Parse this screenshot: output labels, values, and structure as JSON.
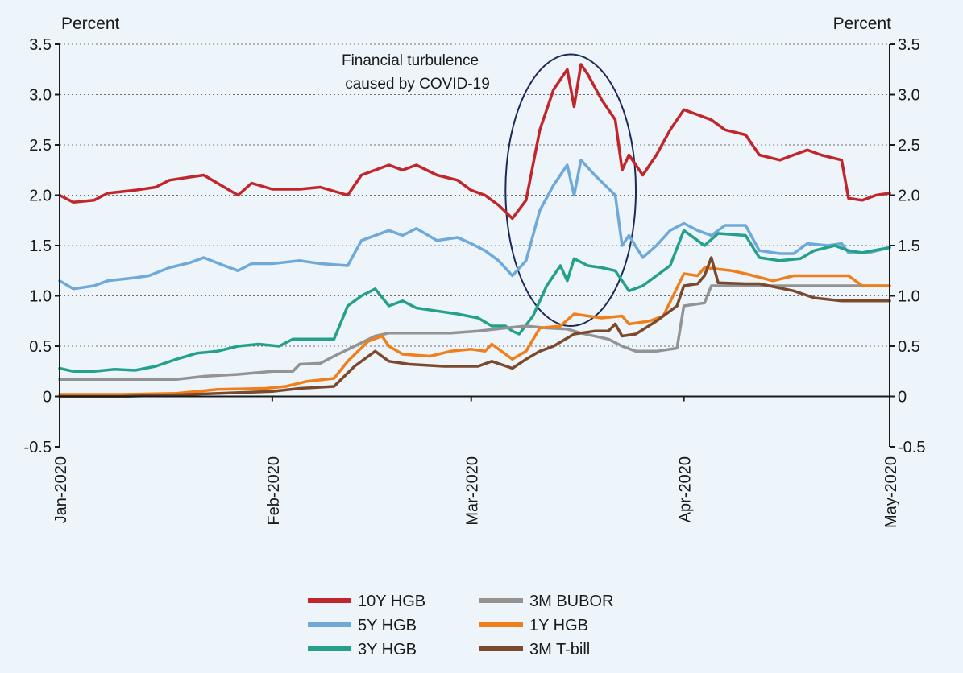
{
  "chart_data": {
    "type": "line",
    "ylabel_left": "Percent",
    "ylabel_right": "Percent",
    "ylim": [
      -0.5,
      3.5
    ],
    "yticks": [
      "3.5",
      "3.0",
      "2.5",
      "2.0",
      "1.5",
      "1.0",
      "0.5",
      "0",
      "-0.5"
    ],
    "ytick_values": [
      3.5,
      3.0,
      2.5,
      2.0,
      1.5,
      1.0,
      0.5,
      0,
      -0.5
    ],
    "xlim": [
      "2020-01-01",
      "2020-05-01"
    ],
    "xticks": [
      "Jan-2020",
      "Feb-2020",
      "Mar-2020",
      "Apr-2020",
      "May-2020"
    ],
    "xtick_dates": [
      "2020-01-01",
      "2020-02-01",
      "2020-03-01",
      "2020-04-01",
      "2020-05-01"
    ],
    "grid": true,
    "legend_position": "bottom",
    "annotation": {
      "lines": [
        "Financial turbulence",
        "caused by COVID-19"
      ],
      "shape": "ellipse",
      "date_from": "2020-03-06",
      "date_to": "2020-03-25",
      "y_from": 0.7,
      "y_to": 3.4
    },
    "series": [
      {
        "name": "10Y HGB",
        "color": "#c0262b",
        "points": [
          [
            "2020-01-01",
            2.0
          ],
          [
            "2020-01-03",
            1.93
          ],
          [
            "2020-01-06",
            1.95
          ],
          [
            "2020-01-08",
            2.02
          ],
          [
            "2020-01-12",
            2.05
          ],
          [
            "2020-01-15",
            2.08
          ],
          [
            "2020-01-17",
            2.15
          ],
          [
            "2020-01-20",
            2.18
          ],
          [
            "2020-01-22",
            2.2
          ],
          [
            "2020-01-25",
            2.08
          ],
          [
            "2020-01-27",
            2.0
          ],
          [
            "2020-01-29",
            2.12
          ],
          [
            "2020-02-01",
            2.06
          ],
          [
            "2020-02-05",
            2.06
          ],
          [
            "2020-02-08",
            2.08
          ],
          [
            "2020-02-12",
            2.0
          ],
          [
            "2020-02-14",
            2.2
          ],
          [
            "2020-02-18",
            2.3
          ],
          [
            "2020-02-20",
            2.25
          ],
          [
            "2020-02-22",
            2.3
          ],
          [
            "2020-02-25",
            2.2
          ],
          [
            "2020-02-28",
            2.15
          ],
          [
            "2020-03-01",
            2.05
          ],
          [
            "2020-03-03",
            2.0
          ],
          [
            "2020-03-05",
            1.9
          ],
          [
            "2020-03-07",
            1.77
          ],
          [
            "2020-03-09",
            1.95
          ],
          [
            "2020-03-11",
            2.65
          ],
          [
            "2020-03-13",
            3.05
          ],
          [
            "2020-03-15",
            3.25
          ],
          [
            "2020-03-16",
            2.88
          ],
          [
            "2020-03-17",
            3.3
          ],
          [
            "2020-03-18",
            3.2
          ],
          [
            "2020-03-20",
            2.95
          ],
          [
            "2020-03-22",
            2.75
          ],
          [
            "2020-03-23",
            2.25
          ],
          [
            "2020-03-24",
            2.4
          ],
          [
            "2020-03-26",
            2.2
          ],
          [
            "2020-03-28",
            2.4
          ],
          [
            "2020-03-30",
            2.65
          ],
          [
            "2020-04-01",
            2.85
          ],
          [
            "2020-04-03",
            2.8
          ],
          [
            "2020-04-05",
            2.75
          ],
          [
            "2020-04-07",
            2.65
          ],
          [
            "2020-04-10",
            2.6
          ],
          [
            "2020-04-12",
            2.4
          ],
          [
            "2020-04-15",
            2.35
          ],
          [
            "2020-04-17",
            2.4
          ],
          [
            "2020-04-19",
            2.45
          ],
          [
            "2020-04-21",
            2.4
          ],
          [
            "2020-04-24",
            2.35
          ],
          [
            "2020-04-25",
            1.97
          ],
          [
            "2020-04-27",
            1.95
          ],
          [
            "2020-04-29",
            2.0
          ],
          [
            "2020-05-01",
            2.02
          ]
        ]
      },
      {
        "name": "5Y HGB",
        "color": "#6ea9da",
        "points": [
          [
            "2020-01-01",
            1.15
          ],
          [
            "2020-01-03",
            1.07
          ],
          [
            "2020-01-06",
            1.1
          ],
          [
            "2020-01-08",
            1.15
          ],
          [
            "2020-01-12",
            1.18
          ],
          [
            "2020-01-14",
            1.2
          ],
          [
            "2020-01-17",
            1.28
          ],
          [
            "2020-01-20",
            1.33
          ],
          [
            "2020-01-22",
            1.38
          ],
          [
            "2020-01-25",
            1.3
          ],
          [
            "2020-01-27",
            1.25
          ],
          [
            "2020-01-29",
            1.32
          ],
          [
            "2020-02-01",
            1.32
          ],
          [
            "2020-02-05",
            1.35
          ],
          [
            "2020-02-08",
            1.32
          ],
          [
            "2020-02-12",
            1.3
          ],
          [
            "2020-02-14",
            1.55
          ],
          [
            "2020-02-18",
            1.65
          ],
          [
            "2020-02-20",
            1.6
          ],
          [
            "2020-02-22",
            1.67
          ],
          [
            "2020-02-25",
            1.55
          ],
          [
            "2020-02-28",
            1.58
          ],
          [
            "2020-03-01",
            1.52
          ],
          [
            "2020-03-03",
            1.45
          ],
          [
            "2020-03-05",
            1.35
          ],
          [
            "2020-03-07",
            1.2
          ],
          [
            "2020-03-09",
            1.35
          ],
          [
            "2020-03-11",
            1.85
          ],
          [
            "2020-03-13",
            2.1
          ],
          [
            "2020-03-15",
            2.3
          ],
          [
            "2020-03-16",
            2.0
          ],
          [
            "2020-03-17",
            2.35
          ],
          [
            "2020-03-19",
            2.2
          ],
          [
            "2020-03-22",
            2.0
          ],
          [
            "2020-03-23",
            1.5
          ],
          [
            "2020-03-24",
            1.6
          ],
          [
            "2020-03-26",
            1.38
          ],
          [
            "2020-03-28",
            1.5
          ],
          [
            "2020-03-30",
            1.65
          ],
          [
            "2020-04-01",
            1.72
          ],
          [
            "2020-04-03",
            1.65
          ],
          [
            "2020-04-05",
            1.6
          ],
          [
            "2020-04-07",
            1.7
          ],
          [
            "2020-04-10",
            1.7
          ],
          [
            "2020-04-12",
            1.45
          ],
          [
            "2020-04-15",
            1.42
          ],
          [
            "2020-04-17",
            1.42
          ],
          [
            "2020-04-19",
            1.52
          ],
          [
            "2020-04-22",
            1.5
          ],
          [
            "2020-04-24",
            1.52
          ],
          [
            "2020-04-25",
            1.43
          ],
          [
            "2020-04-28",
            1.43
          ],
          [
            "2020-05-01",
            1.48
          ]
        ]
      },
      {
        "name": "3Y HGB",
        "color": "#24a08b",
        "points": [
          [
            "2020-01-01",
            0.28
          ],
          [
            "2020-01-03",
            0.25
          ],
          [
            "2020-01-06",
            0.25
          ],
          [
            "2020-01-09",
            0.27
          ],
          [
            "2020-01-12",
            0.26
          ],
          [
            "2020-01-15",
            0.3
          ],
          [
            "2020-01-18",
            0.37
          ],
          [
            "2020-01-21",
            0.43
          ],
          [
            "2020-01-24",
            0.45
          ],
          [
            "2020-01-27",
            0.5
          ],
          [
            "2020-01-30",
            0.52
          ],
          [
            "2020-02-02",
            0.5
          ],
          [
            "2020-02-04",
            0.57
          ],
          [
            "2020-02-07",
            0.57
          ],
          [
            "2020-02-10",
            0.57
          ],
          [
            "2020-02-12",
            0.9
          ],
          [
            "2020-02-14",
            1.0
          ],
          [
            "2020-02-16",
            1.07
          ],
          [
            "2020-02-18",
            0.9
          ],
          [
            "2020-02-20",
            0.95
          ],
          [
            "2020-02-22",
            0.88
          ],
          [
            "2020-02-25",
            0.85
          ],
          [
            "2020-02-28",
            0.82
          ],
          [
            "2020-03-02",
            0.78
          ],
          [
            "2020-03-04",
            0.7
          ],
          [
            "2020-03-06",
            0.7
          ],
          [
            "2020-03-07",
            0.65
          ],
          [
            "2020-03-08",
            0.62
          ],
          [
            "2020-03-10",
            0.8
          ],
          [
            "2020-03-12",
            1.1
          ],
          [
            "2020-03-14",
            1.3
          ],
          [
            "2020-03-15",
            1.15
          ],
          [
            "2020-03-16",
            1.37
          ],
          [
            "2020-03-18",
            1.3
          ],
          [
            "2020-03-20",
            1.28
          ],
          [
            "2020-03-22",
            1.25
          ],
          [
            "2020-03-24",
            1.05
          ],
          [
            "2020-03-26",
            1.1
          ],
          [
            "2020-03-28",
            1.2
          ],
          [
            "2020-03-30",
            1.3
          ],
          [
            "2020-04-01",
            1.65
          ],
          [
            "2020-04-03",
            1.55
          ],
          [
            "2020-04-04",
            1.5
          ],
          [
            "2020-04-06",
            1.62
          ],
          [
            "2020-04-10",
            1.6
          ],
          [
            "2020-04-12",
            1.38
          ],
          [
            "2020-04-15",
            1.35
          ],
          [
            "2020-04-18",
            1.37
          ],
          [
            "2020-04-20",
            1.45
          ],
          [
            "2020-04-23",
            1.5
          ],
          [
            "2020-04-25",
            1.45
          ],
          [
            "2020-04-27",
            1.43
          ],
          [
            "2020-05-01",
            1.48
          ]
        ]
      },
      {
        "name": "3M BUBOR",
        "color": "#939393",
        "points": [
          [
            "2020-01-01",
            0.17
          ],
          [
            "2020-01-10",
            0.17
          ],
          [
            "2020-01-18",
            0.17
          ],
          [
            "2020-01-22",
            0.2
          ],
          [
            "2020-01-27",
            0.22
          ],
          [
            "2020-02-01",
            0.25
          ],
          [
            "2020-02-04",
            0.25
          ],
          [
            "2020-02-05",
            0.32
          ],
          [
            "2020-02-08",
            0.33
          ],
          [
            "2020-02-10",
            0.4
          ],
          [
            "2020-02-13",
            0.5
          ],
          [
            "2020-02-16",
            0.6
          ],
          [
            "2020-02-18",
            0.63
          ],
          [
            "2020-02-21",
            0.63
          ],
          [
            "2020-02-27",
            0.63
          ],
          [
            "2020-03-02",
            0.65
          ],
          [
            "2020-03-06",
            0.68
          ],
          [
            "2020-03-09",
            0.7
          ],
          [
            "2020-03-12",
            0.68
          ],
          [
            "2020-03-15",
            0.67
          ],
          [
            "2020-03-17",
            0.63
          ],
          [
            "2020-03-21",
            0.57
          ],
          [
            "2020-03-23",
            0.5
          ],
          [
            "2020-03-25",
            0.45
          ],
          [
            "2020-03-28",
            0.45
          ],
          [
            "2020-03-31",
            0.48
          ],
          [
            "2020-04-01",
            0.9
          ],
          [
            "2020-04-04",
            0.93
          ],
          [
            "2020-04-05",
            1.1
          ],
          [
            "2020-04-15",
            1.1
          ],
          [
            "2020-05-01",
            1.1
          ]
        ]
      },
      {
        "name": "1Y HGB",
        "color": "#f07f1b",
        "points": [
          [
            "2020-01-01",
            0.02
          ],
          [
            "2020-01-10",
            0.02
          ],
          [
            "2020-01-18",
            0.03
          ],
          [
            "2020-01-24",
            0.07
          ],
          [
            "2020-01-31",
            0.08
          ],
          [
            "2020-02-03",
            0.1
          ],
          [
            "2020-02-06",
            0.15
          ],
          [
            "2020-02-10",
            0.18
          ],
          [
            "2020-02-12",
            0.35
          ],
          [
            "2020-02-15",
            0.55
          ],
          [
            "2020-02-17",
            0.6
          ],
          [
            "2020-02-18",
            0.5
          ],
          [
            "2020-02-20",
            0.42
          ],
          [
            "2020-02-24",
            0.4
          ],
          [
            "2020-02-27",
            0.45
          ],
          [
            "2020-03-01",
            0.47
          ],
          [
            "2020-03-03",
            0.45
          ],
          [
            "2020-03-04",
            0.52
          ],
          [
            "2020-03-06",
            0.42
          ],
          [
            "2020-03-07",
            0.37
          ],
          [
            "2020-03-09",
            0.45
          ],
          [
            "2020-03-11",
            0.68
          ],
          [
            "2020-03-14",
            0.7
          ],
          [
            "2020-03-16",
            0.82
          ],
          [
            "2020-03-18",
            0.8
          ],
          [
            "2020-03-20",
            0.78
          ],
          [
            "2020-03-23",
            0.8
          ],
          [
            "2020-03-24",
            0.72
          ],
          [
            "2020-03-27",
            0.75
          ],
          [
            "2020-03-29",
            0.8
          ],
          [
            "2020-04-01",
            1.22
          ],
          [
            "2020-04-03",
            1.2
          ],
          [
            "2020-04-04",
            1.28
          ],
          [
            "2020-04-08",
            1.25
          ],
          [
            "2020-04-10",
            1.22
          ],
          [
            "2020-04-14",
            1.15
          ],
          [
            "2020-04-17",
            1.2
          ],
          [
            "2020-04-20",
            1.2
          ],
          [
            "2020-04-25",
            1.2
          ],
          [
            "2020-04-27",
            1.1
          ],
          [
            "2020-05-01",
            1.1
          ]
        ]
      },
      {
        "name": "3M T-bill",
        "color": "#7b4a2e",
        "points": [
          [
            "2020-01-01",
            0.0
          ],
          [
            "2020-01-10",
            0.0
          ],
          [
            "2020-01-20",
            0.02
          ],
          [
            "2020-02-01",
            0.05
          ],
          [
            "2020-02-05",
            0.08
          ],
          [
            "2020-02-10",
            0.1
          ],
          [
            "2020-02-13",
            0.3
          ],
          [
            "2020-02-16",
            0.45
          ],
          [
            "2020-02-18",
            0.35
          ],
          [
            "2020-02-21",
            0.32
          ],
          [
            "2020-02-26",
            0.3
          ],
          [
            "2020-03-02",
            0.3
          ],
          [
            "2020-03-04",
            0.35
          ],
          [
            "2020-03-07",
            0.28
          ],
          [
            "2020-03-09",
            0.37
          ],
          [
            "2020-03-11",
            0.45
          ],
          [
            "2020-03-13",
            0.5
          ],
          [
            "2020-03-16",
            0.62
          ],
          [
            "2020-03-19",
            0.65
          ],
          [
            "2020-03-21",
            0.65
          ],
          [
            "2020-03-22",
            0.72
          ],
          [
            "2020-03-23",
            0.6
          ],
          [
            "2020-03-25",
            0.62
          ],
          [
            "2020-03-28",
            0.75
          ],
          [
            "2020-03-31",
            0.9
          ],
          [
            "2020-04-01",
            1.1
          ],
          [
            "2020-04-03",
            1.12
          ],
          [
            "2020-04-04",
            1.2
          ],
          [
            "2020-04-05",
            1.38
          ],
          [
            "2020-04-06",
            1.13
          ],
          [
            "2020-04-10",
            1.12
          ],
          [
            "2020-04-12",
            1.12
          ],
          [
            "2020-04-17",
            1.05
          ],
          [
            "2020-04-20",
            0.98
          ],
          [
            "2020-04-24",
            0.95
          ],
          [
            "2020-05-01",
            0.95
          ]
        ]
      }
    ]
  }
}
